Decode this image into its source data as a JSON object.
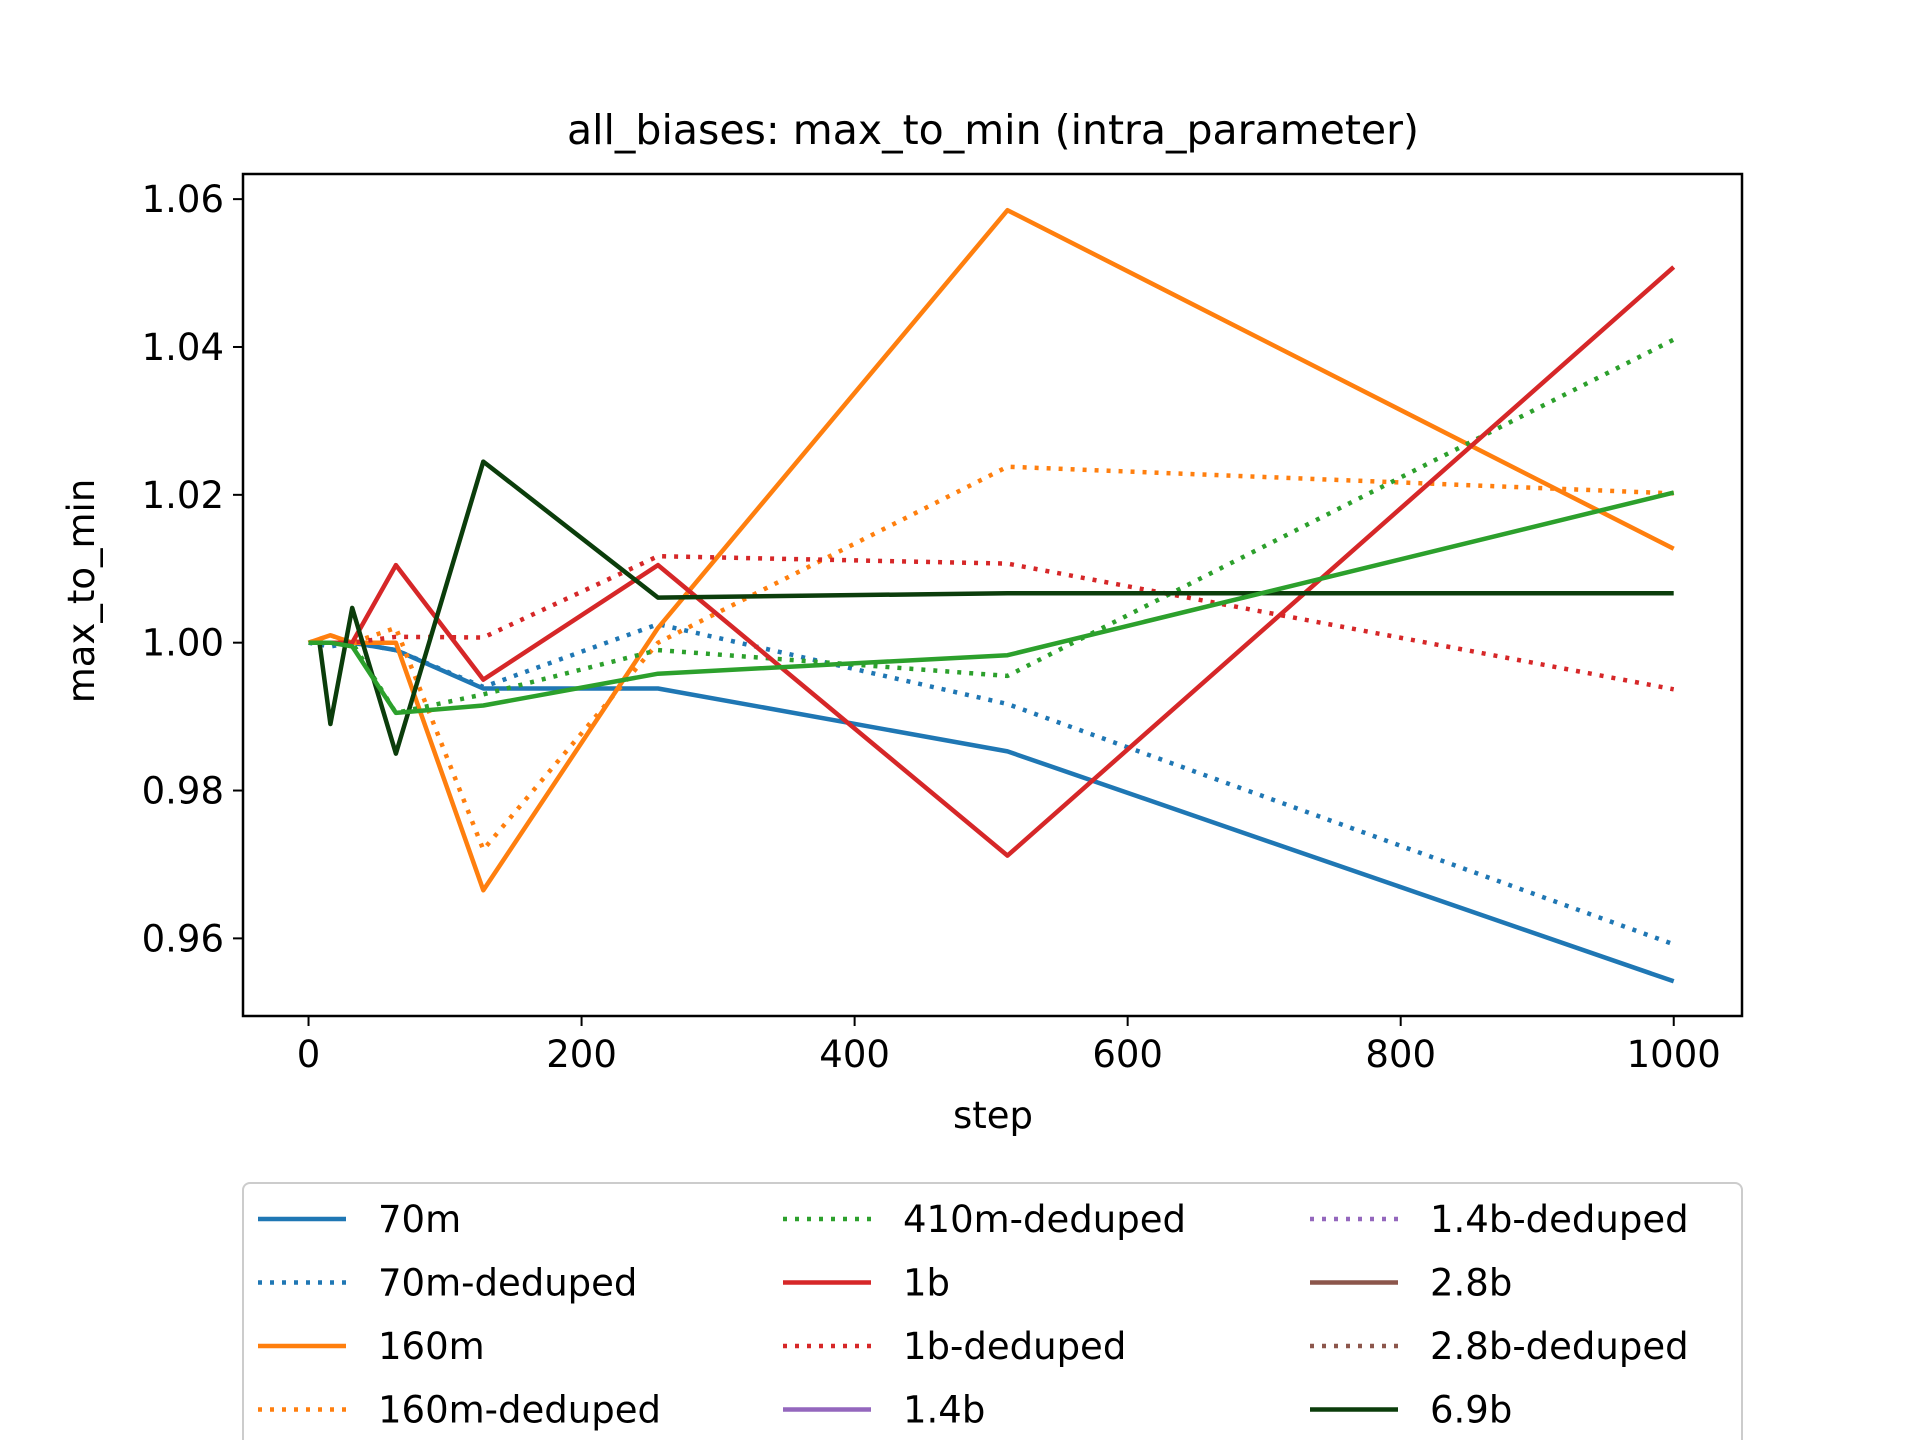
{
  "chart_data": {
    "type": "line",
    "title": "all_biases: max_to_min (intra_parameter)",
    "xlabel": "step",
    "ylabel": "max_to_min",
    "xlim": [
      -48,
      1050
    ],
    "ylim": [
      0.9495,
      1.0634
    ],
    "xticks": [
      0,
      200,
      400,
      600,
      800,
      1000
    ],
    "xtick_labels": [
      "0",
      "200",
      "400",
      "600",
      "800",
      "1000"
    ],
    "yticks": [
      0.96,
      0.98,
      1.0,
      1.02,
      1.04,
      1.06
    ],
    "ytick_labels": [
      "0.96",
      "0.98",
      "1.00",
      "1.02",
      "1.04",
      "1.06"
    ],
    "grid": false,
    "legend_position": "below-plot",
    "legend_columns": 3,
    "series": [
      {
        "name": "70m",
        "color": "#1f77b4",
        "style": "solid",
        "x": [
          0,
          16,
          32,
          64,
          128,
          256,
          512,
          1000
        ],
        "y": [
          1.0,
          1.0,
          1.0,
          0.999,
          0.9938,
          0.9938,
          0.9853,
          0.9542
        ]
      },
      {
        "name": "70m-deduped",
        "color": "#1f77b4",
        "style": "dotted",
        "x": [
          0,
          16,
          32,
          64,
          128,
          256,
          512,
          1000
        ],
        "y": [
          1.0,
          0.9995,
          1.0,
          0.999,
          0.994,
          1.0025,
          0.9917,
          0.9592
        ]
      },
      {
        "name": "160m",
        "color": "#ff7f0e",
        "style": "solid",
        "x": [
          0,
          16,
          32,
          64,
          128,
          256,
          512,
          1000
        ],
        "y": [
          1.0,
          1.001,
          1.0,
          1.0,
          0.9665,
          1.002,
          1.0585,
          1.0127
        ]
      },
      {
        "name": "160m-deduped",
        "color": "#ff7f0e",
        "style": "dotted",
        "x": [
          0,
          16,
          32,
          64,
          128,
          256,
          512,
          1000
        ],
        "y": [
          1.0,
          1.001,
          1.0,
          1.002,
          0.972,
          1.0,
          1.0238,
          1.0202
        ]
      },
      {
        "name": "410m-deduped",
        "color": "#2ca02c",
        "style": "dotted",
        "x": [
          0,
          16,
          32,
          64,
          128,
          256,
          512,
          1000
        ],
        "y": [
          1.0,
          1.0,
          1.0,
          0.9905,
          0.993,
          0.999,
          0.9955,
          1.041
        ]
      },
      {
        "name": "1b",
        "color": "#d62728",
        "style": "solid",
        "x": [
          0,
          16,
          32,
          64,
          128,
          256,
          512,
          1000
        ],
        "y": [
          1.0,
          1.0,
          1.0,
          1.0105,
          0.995,
          1.0105,
          0.9712,
          1.0508
        ]
      },
      {
        "name": "1b-deduped",
        "color": "#d62728",
        "style": "dotted",
        "x": [
          0,
          16,
          32,
          64,
          128,
          256,
          512,
          1000
        ],
        "y": [
          1.0,
          1.0,
          1.0,
          1.0008,
          1.0007,
          1.0117,
          1.0107,
          0.9937
        ]
      },
      {
        "name": "1.4b",
        "color": "#9467bd",
        "style": "solid",
        "x": [],
        "y": []
      },
      {
        "name": "1.4b-deduped",
        "color": "#9467bd",
        "style": "dotted",
        "x": [],
        "y": []
      },
      {
        "name": "2.8b",
        "color": "#8c564b",
        "style": "solid",
        "x": [],
        "y": []
      },
      {
        "name": "2.8b-deduped",
        "color": "#8c564b",
        "style": "dotted",
        "x": [],
        "y": []
      },
      {
        "name": "6.9b",
        "color": "#0b3d0b",
        "style": "solid",
        "x": [
          0,
          8,
          16,
          32,
          64,
          128,
          256,
          512,
          1000
        ],
        "y": [
          1.0,
          1.0,
          0.989,
          1.0047,
          0.985,
          1.0245,
          1.0061,
          1.0067,
          1.0067
        ]
      }
    ],
    "extra_lines": [
      {
        "legend": false,
        "color": "#2ca02c",
        "style": "solid",
        "x": [
          0,
          16,
          32,
          64,
          128,
          256,
          512,
          1000
        ],
        "y": [
          1.0,
          1.0,
          0.9995,
          0.9905,
          0.9915,
          0.9958,
          0.9983,
          1.0203
        ]
      }
    ]
  }
}
